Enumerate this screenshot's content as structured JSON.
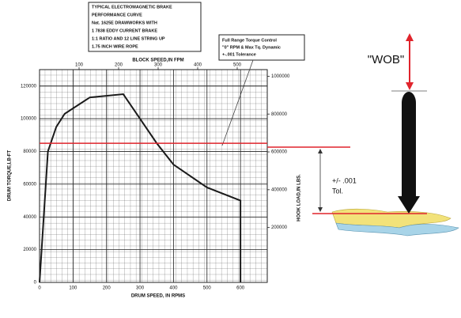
{
  "chart_data": {
    "type": "line",
    "title_lines": [
      "TYPICAL ELECTROMAGNETIC BRAKE",
      "PERFORMANCE CURVE",
      "Nat. 1625E DRAWWORKS WITH",
      "1 7838 EDDY CURRENT BRAKE",
      "1:1 RATIO AND 12 LINE STRING UP",
      "1.75 INCH WIRE ROPE"
    ],
    "x_label": "DRUM SPEED, IN RPMS",
    "x2_label": "BLOCK SPEED,IN FPM",
    "y_label": "DRUM TORQUE,LB-FT",
    "y2_label": "HOOK LOAD,IN LBS.",
    "xlim": [
      0,
      680
    ],
    "xticks": [
      0,
      100,
      200,
      300,
      400,
      500,
      600
    ],
    "x2lim": [
      0,
      576
    ],
    "x2ticks": [
      100,
      200,
      300,
      400,
      500
    ],
    "ylim": [
      0,
      130000
    ],
    "yticks": [
      0,
      20000,
      40000,
      60000,
      80000,
      100000,
      120000
    ],
    "y2lim": [
      -90000,
      1035000
    ],
    "y2ticks": [
      200000,
      400000,
      600000,
      800000,
      1000000
    ],
    "grid": true,
    "series": [
      {
        "color": "#1a1a1a",
        "x": [
          0,
          25,
          50,
          75,
          150,
          250,
          300,
          350,
          400,
          500,
          600,
          600
        ],
        "values": [
          0,
          80000,
          95000,
          103000,
          113000,
          115000,
          100000,
          85000,
          72000,
          58000,
          50000,
          0
        ]
      }
    ],
    "reference_line": {
      "value": 85000,
      "color": "#e0242c"
    },
    "callout_lines": [
      "Full Range Torque Control",
      "\"0\" RPM & Max Tq. Dynamic",
      "+-.001 Tolerance"
    ],
    "wob_label": "\"WOB\"",
    "tolerance_lines": [
      "+/- .001",
      "Tol."
    ]
  }
}
